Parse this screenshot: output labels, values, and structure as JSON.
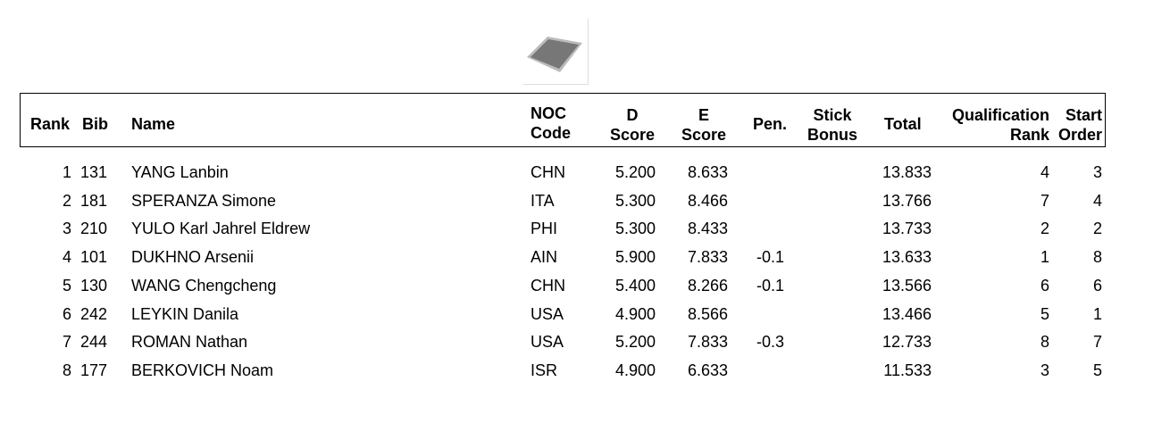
{
  "columns": {
    "rank": "Rank",
    "bib": "Bib",
    "name": "Name",
    "noc_1": "NOC",
    "noc_2": "Code",
    "d_1": "D",
    "d_2": "Score",
    "e_1": "E",
    "e_2": "Score",
    "pen": "Pen.",
    "stick_1": "Stick",
    "stick_2": "Bonus",
    "total": "Total",
    "qual_1": "Qualification",
    "qual_2": "Rank",
    "start_1": "Start",
    "start_2": "Order"
  },
  "rows": [
    {
      "rank": "1",
      "bib": "131",
      "name": "YANG Lanbin",
      "noc": "CHN",
      "d": "5.200",
      "e": "8.633",
      "pen": "",
      "stick": "",
      "total": "13.833",
      "qual": "4",
      "start": "3"
    },
    {
      "rank": "2",
      "bib": "181",
      "name": "SPERANZA Simone",
      "noc": "ITA",
      "d": "5.300",
      "e": "8.466",
      "pen": "",
      "stick": "",
      "total": "13.766",
      "qual": "7",
      "start": "4"
    },
    {
      "rank": "3",
      "bib": "210",
      "name": "YULO Karl Jahrel Eldrew",
      "noc": "PHI",
      "d": "5.300",
      "e": "8.433",
      "pen": "",
      "stick": "",
      "total": "13.733",
      "qual": "2",
      "start": "2"
    },
    {
      "rank": "4",
      "bib": "101",
      "name": "DUKHNO Arsenii",
      "noc": "AIN",
      "d": "5.900",
      "e": "7.833",
      "pen": "-0.1",
      "stick": "",
      "total": "13.633",
      "qual": "1",
      "start": "8"
    },
    {
      "rank": "5",
      "bib": "130",
      "name": "WANG Chengcheng",
      "noc": "CHN",
      "d": "5.400",
      "e": "8.266",
      "pen": "-0.1",
      "stick": "",
      "total": "13.566",
      "qual": "6",
      "start": "6"
    },
    {
      "rank": "6",
      "bib": "242",
      "name": "LEYKIN Danila",
      "noc": "USA",
      "d": "4.900",
      "e": "8.566",
      "pen": "",
      "stick": "",
      "total": "13.466",
      "qual": "5",
      "start": "1"
    },
    {
      "rank": "7",
      "bib": "244",
      "name": "ROMAN Nathan",
      "noc": "USA",
      "d": "5.200",
      "e": "7.833",
      "pen": "-0.3",
      "stick": "",
      "total": "12.733",
      "qual": "8",
      "start": "7"
    },
    {
      "rank": "8",
      "bib": "177",
      "name": "BERKOVICH Noam",
      "noc": "ISR",
      "d": "4.900",
      "e": "6.633",
      "pen": "",
      "stick": "",
      "total": "11.533",
      "qual": "3",
      "start": "5"
    }
  ]
}
